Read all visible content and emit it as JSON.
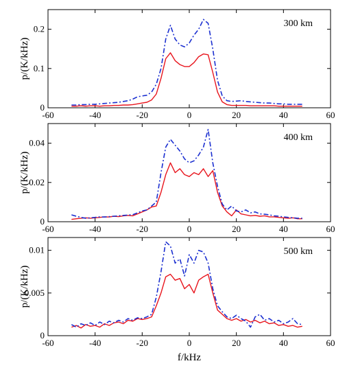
{
  "chart_data": [
    {
      "type": "line",
      "annotation": "300 km",
      "ylabel": "p/(K/kHz)",
      "xlabel": "",
      "xlim": [
        -60,
        60
      ],
      "ylim": [
        0,
        0.25
      ],
      "xticks": [
        "-60",
        "-40",
        "-20",
        "0",
        "20",
        "40",
        "60"
      ],
      "yticks": [
        "0",
        "0.1",
        "0.2"
      ],
      "ytick_values": [
        0,
        0.1,
        0.2
      ],
      "series": [
        {
          "style": "solid",
          "color": "#e8141c",
          "x": [
            -50,
            -48,
            -46,
            -44,
            -42,
            -40,
            -38,
            -36,
            -34,
            -32,
            -30,
            -28,
            -26,
            -24,
            -22,
            -20,
            -18,
            -16,
            -14,
            -12,
            -10,
            -8,
            -6,
            -4,
            -2,
            0,
            2,
            4,
            6,
            8,
            10,
            12,
            14,
            16,
            18,
            20,
            22,
            24,
            26,
            28,
            30,
            32,
            34,
            36,
            38,
            40,
            42,
            44,
            46,
            48
          ],
          "y": [
            0.004,
            0.004,
            0.005,
            0.004,
            0.005,
            0.005,
            0.004,
            0.005,
            0.005,
            0.006,
            0.006,
            0.007,
            0.007,
            0.008,
            0.01,
            0.012,
            0.014,
            0.02,
            0.035,
            0.075,
            0.125,
            0.14,
            0.12,
            0.11,
            0.105,
            0.105,
            0.115,
            0.13,
            0.137,
            0.135,
            0.09,
            0.04,
            0.015,
            0.008,
            0.006,
            0.006,
            0.006,
            0.006,
            0.005,
            0.005,
            0.005,
            0.005,
            0.005,
            0.005,
            0.004,
            0.004,
            0.004,
            0.004,
            0.004,
            0.004
          ]
        },
        {
          "style": "dash-dot",
          "color": "#1b2fd0",
          "x": [
            -50,
            -48,
            -46,
            -44,
            -42,
            -40,
            -38,
            -36,
            -34,
            -32,
            -30,
            -28,
            -26,
            -24,
            -22,
            -20,
            -18,
            -16,
            -14,
            -12,
            -10,
            -8,
            -6,
            -4,
            -2,
            0,
            2,
            4,
            6,
            8,
            10,
            12,
            14,
            16,
            18,
            20,
            22,
            24,
            26,
            28,
            30,
            32,
            34,
            36,
            38,
            40,
            42,
            44,
            46,
            48
          ],
          "y": [
            0.007,
            0.007,
            0.008,
            0.008,
            0.009,
            0.009,
            0.01,
            0.011,
            0.012,
            0.013,
            0.014,
            0.016,
            0.018,
            0.022,
            0.028,
            0.03,
            0.032,
            0.04,
            0.06,
            0.1,
            0.175,
            0.21,
            0.175,
            0.16,
            0.155,
            0.165,
            0.185,
            0.2,
            0.225,
            0.215,
            0.15,
            0.07,
            0.03,
            0.018,
            0.016,
            0.017,
            0.018,
            0.016,
            0.015,
            0.014,
            0.013,
            0.012,
            0.012,
            0.011,
            0.01,
            0.01,
            0.009,
            0.009,
            0.009,
            0.009
          ]
        }
      ]
    },
    {
      "type": "line",
      "annotation": "400 km",
      "ylabel": "p/(K/kHz)",
      "xlabel": "",
      "xlim": [
        -60,
        60
      ],
      "ylim": [
        0,
        0.05
      ],
      "xticks": [
        "-60",
        "-40",
        "-20",
        "0",
        "20",
        "40",
        "60"
      ],
      "yticks": [
        "0",
        "0.02",
        "0.04"
      ],
      "ytick_values": [
        0,
        0.02,
        0.04
      ],
      "series": [
        {
          "style": "solid",
          "color": "#e8141c",
          "x": [
            -50,
            -48,
            -46,
            -44,
            -42,
            -40,
            -38,
            -36,
            -34,
            -32,
            -30,
            -28,
            -26,
            -24,
            -22,
            -20,
            -18,
            -16,
            -14,
            -12,
            -10,
            -8,
            -6,
            -4,
            -2,
            0,
            2,
            4,
            6,
            8,
            10,
            12,
            14,
            16,
            18,
            20,
            22,
            24,
            26,
            28,
            30,
            32,
            34,
            36,
            38,
            40,
            42,
            44,
            46,
            48
          ],
          "y": [
            0.0012,
            0.0015,
            0.0018,
            0.002,
            0.0018,
            0.002,
            0.0022,
            0.0025,
            0.0024,
            0.0028,
            0.0026,
            0.003,
            0.0032,
            0.003,
            0.004,
            0.005,
            0.006,
            0.0075,
            0.008,
            0.015,
            0.024,
            0.03,
            0.025,
            0.027,
            0.024,
            0.023,
            0.025,
            0.024,
            0.027,
            0.023,
            0.026,
            0.015,
            0.008,
            0.005,
            0.003,
            0.006,
            0.004,
            0.0035,
            0.003,
            0.0032,
            0.0028,
            0.003,
            0.0025,
            0.0025,
            0.0022,
            0.002,
            0.0018,
            0.002,
            0.0015,
            0.0015
          ]
        },
        {
          "style": "dash-dot",
          "color": "#1b2fd0",
          "x": [
            -50,
            -48,
            -46,
            -44,
            -42,
            -40,
            -38,
            -36,
            -34,
            -32,
            -30,
            -28,
            -26,
            -24,
            -22,
            -20,
            -18,
            -16,
            -14,
            -12,
            -10,
            -8,
            -6,
            -4,
            -2,
            0,
            2,
            4,
            6,
            8,
            10,
            12,
            14,
            16,
            18,
            20,
            22,
            24,
            26,
            28,
            30,
            32,
            34,
            36,
            38,
            40,
            42,
            44,
            46,
            48
          ],
          "y": [
            0.0035,
            0.0028,
            0.0022,
            0.0018,
            0.002,
            0.0022,
            0.0025,
            0.0024,
            0.0026,
            0.0028,
            0.003,
            0.0032,
            0.0034,
            0.0036,
            0.0045,
            0.0055,
            0.006,
            0.008,
            0.01,
            0.025,
            0.038,
            0.042,
            0.039,
            0.036,
            0.032,
            0.03,
            0.031,
            0.034,
            0.038,
            0.047,
            0.03,
            0.018,
            0.009,
            0.006,
            0.008,
            0.0055,
            0.005,
            0.006,
            0.0045,
            0.005,
            0.004,
            0.0038,
            0.0035,
            0.003,
            0.0028,
            0.0025,
            0.0022,
            0.002,
            0.0018,
            0.0018
          ]
        }
      ]
    },
    {
      "type": "line",
      "annotation": "500 km",
      "ylabel": "p/(K/kHz)",
      "xlabel": "f/kHz",
      "xlim": [
        -60,
        60
      ],
      "ylim": [
        0,
        0.0115
      ],
      "xticks": [
        "-60",
        "-40",
        "-20",
        "0",
        "20",
        "40",
        "60"
      ],
      "yticks": [
        "0",
        "0.005",
        "0.01"
      ],
      "ytick_values": [
        0,
        0.005,
        0.01
      ],
      "series": [
        {
          "style": "solid",
          "color": "#e8141c",
          "x": [
            -50,
            -48,
            -46,
            -44,
            -42,
            -40,
            -38,
            -36,
            -34,
            -32,
            -30,
            -28,
            -26,
            -24,
            -22,
            -20,
            -18,
            -16,
            -14,
            -12,
            -10,
            -8,
            -6,
            -4,
            -2,
            0,
            2,
            4,
            6,
            8,
            10,
            12,
            14,
            16,
            18,
            20,
            22,
            24,
            26,
            28,
            30,
            32,
            34,
            36,
            38,
            40,
            42,
            44,
            46,
            48
          ],
          "y": [
            0.001,
            0.0012,
            0.0009,
            0.0013,
            0.0011,
            0.0012,
            0.001,
            0.0014,
            0.0012,
            0.0015,
            0.0016,
            0.0014,
            0.0018,
            0.0017,
            0.002,
            0.0019,
            0.002,
            0.0022,
            0.0035,
            0.005,
            0.0069,
            0.0072,
            0.0065,
            0.0067,
            0.0055,
            0.006,
            0.005,
            0.0065,
            0.0069,
            0.0072,
            0.005,
            0.003,
            0.0025,
            0.002,
            0.0018,
            0.002,
            0.0017,
            0.0019,
            0.0016,
            0.0018,
            0.0015,
            0.0017,
            0.0014,
            0.0015,
            0.0012,
            0.0013,
            0.0011,
            0.0012,
            0.001,
            0.0011
          ]
        },
        {
          "style": "dash-dot",
          "color": "#1b2fd0",
          "x": [
            -50,
            -48,
            -46,
            -44,
            -42,
            -40,
            -38,
            -36,
            -34,
            -32,
            -30,
            -28,
            -26,
            -24,
            -22,
            -20,
            -18,
            -16,
            -14,
            -12,
            -10,
            -8,
            -6,
            -4,
            -2,
            0,
            2,
            4,
            6,
            8,
            10,
            12,
            14,
            16,
            18,
            20,
            22,
            24,
            26,
            28,
            30,
            32,
            34,
            36,
            38,
            40,
            42,
            44,
            46,
            48
          ],
          "y": [
            0.0013,
            0.001,
            0.0014,
            0.0012,
            0.0015,
            0.0012,
            0.0016,
            0.0013,
            0.0017,
            0.0015,
            0.0018,
            0.0016,
            0.002,
            0.0018,
            0.0021,
            0.002,
            0.0022,
            0.0025,
            0.0045,
            0.0075,
            0.011,
            0.0105,
            0.0085,
            0.009,
            0.007,
            0.0095,
            0.0085,
            0.01,
            0.0098,
            0.0085,
            0.0055,
            0.0035,
            0.0028,
            0.0022,
            0.002,
            0.0024,
            0.002,
            0.0017,
            0.001,
            0.0022,
            0.0025,
            0.0018,
            0.002,
            0.0016,
            0.0018,
            0.0014,
            0.0016,
            0.002,
            0.0014,
            0.0013
          ]
        }
      ]
    }
  ]
}
